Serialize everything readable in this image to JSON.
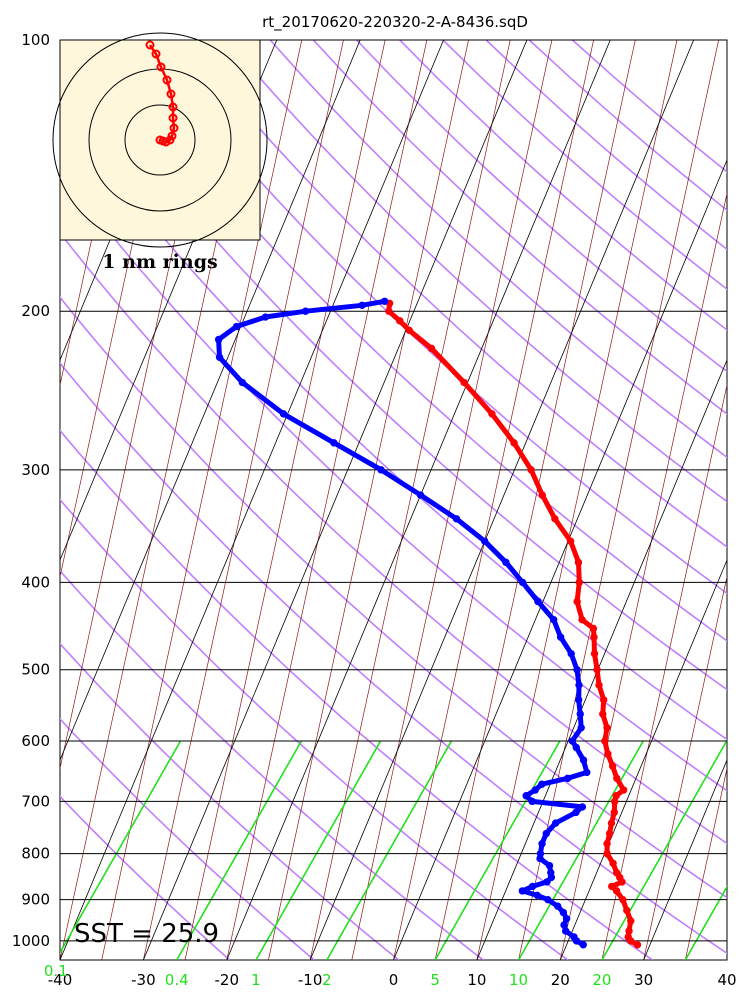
{
  "chart_data": {
    "type": "skew-t",
    "title": "rt_20170620-220320-2-A-8436.sqD",
    "pressure_range": [
      1050,
      100
    ],
    "temperature_range": [
      -40,
      40
    ],
    "y_scale": "log",
    "grid": true,
    "pressure_ticks": [
      100,
      200,
      300,
      400,
      500,
      600,
      700,
      800,
      900,
      1000
    ],
    "temperature_ticks": [
      -40,
      -30,
      -20,
      -10,
      0,
      10,
      20,
      30,
      40
    ],
    "mixing_ratio_labels": [
      {
        "value": "0.1",
        "temp_at_1050": -40.5
      },
      {
        "value": "0.4",
        "temp_at_1050": -26
      },
      {
        "value": "1",
        "temp_at_1050": -16.5
      },
      {
        "value": "2",
        "temp_at_1050": -8
      },
      {
        "value": "5",
        "temp_at_1050": 5
      },
      {
        "value": "10",
        "temp_at_1050": 15
      },
      {
        "value": "20",
        "temp_at_1050": 25
      }
    ],
    "sst_label": "SST = 25.9",
    "hodograph_label": "1 nm rings",
    "series": [
      {
        "name": "temperature",
        "color": "#ff0000",
        "points": [
          [
            1010,
            28.5
          ],
          [
            1000,
            27.5
          ],
          [
            990,
            27.0
          ],
          [
            975,
            26.8
          ],
          [
            950,
            26.5
          ],
          [
            925,
            25.5
          ],
          [
            900,
            24.5
          ],
          [
            880,
            23.3
          ],
          [
            870,
            22.5
          ],
          [
            860,
            23.5
          ],
          [
            850,
            23.0
          ],
          [
            840,
            22.4
          ],
          [
            820,
            21.5
          ],
          [
            800,
            20.3
          ],
          [
            780,
            19.8
          ],
          [
            760,
            19.6
          ],
          [
            740,
            19.3
          ],
          [
            720,
            19.1
          ],
          [
            700,
            18.6
          ],
          [
            690,
            18.5
          ],
          [
            680,
            19.1
          ],
          [
            660,
            17.7
          ],
          [
            640,
            16.6
          ],
          [
            620,
            15.4
          ],
          [
            600,
            14.4
          ],
          [
            580,
            14.0
          ],
          [
            560,
            12.8
          ],
          [
            540,
            12.2
          ],
          [
            520,
            10.9
          ],
          [
            500,
            9.9
          ],
          [
            480,
            8.8
          ],
          [
            460,
            7.9
          ],
          [
            450,
            7.4
          ],
          [
            440,
            5.6
          ],
          [
            420,
            4.1
          ],
          [
            400,
            3.4
          ],
          [
            380,
            2.3
          ],
          [
            360,
            0.3
          ],
          [
            340,
            -2.7
          ],
          [
            320,
            -5.4
          ],
          [
            300,
            -8.0
          ],
          [
            280,
            -11.4
          ],
          [
            260,
            -15.5
          ],
          [
            240,
            -20.4
          ],
          [
            220,
            -26.0
          ],
          [
            210,
            -29.6
          ],
          [
            205,
            -31.2
          ],
          [
            200,
            -33.0
          ],
          [
            196,
            -33.3
          ]
        ]
      },
      {
        "name": "dewpoint",
        "color": "#0000ff",
        "points": [
          [
            1010,
            22.0
          ],
          [
            1000,
            21.0
          ],
          [
            990,
            20.5
          ],
          [
            975,
            19.2
          ],
          [
            960,
            18.7
          ],
          [
            945,
            18.7
          ],
          [
            930,
            18.0
          ],
          [
            915,
            17.0
          ],
          [
            900,
            15.5
          ],
          [
            890,
            14.0
          ],
          [
            880,
            12.0
          ],
          [
            870,
            13.0
          ],
          [
            860,
            14.5
          ],
          [
            850,
            14.8
          ],
          [
            840,
            14.5
          ],
          [
            825,
            14.0
          ],
          [
            810,
            12.5
          ],
          [
            800,
            12.3
          ],
          [
            780,
            12.0
          ],
          [
            760,
            12.0
          ],
          [
            740,
            12.6
          ],
          [
            720,
            14.5
          ],
          [
            710,
            15.0
          ],
          [
            700,
            8.7
          ],
          [
            690,
            7.7
          ],
          [
            680,
            8.5
          ],
          [
            670,
            9.0
          ],
          [
            660,
            11.8
          ],
          [
            650,
            13.8
          ],
          [
            630,
            12.8
          ],
          [
            610,
            11.3
          ],
          [
            600,
            10.5
          ],
          [
            580,
            10.9
          ],
          [
            560,
            10.1
          ],
          [
            540,
            9.2
          ],
          [
            520,
            8.5
          ],
          [
            500,
            7.5
          ],
          [
            480,
            6.0
          ],
          [
            460,
            3.9
          ],
          [
            440,
            2.2
          ],
          [
            420,
            -0.6
          ],
          [
            400,
            -3.4
          ],
          [
            380,
            -6.4
          ],
          [
            360,
            -10.0
          ],
          [
            340,
            -14.5
          ],
          [
            320,
            -20.0
          ],
          [
            300,
            -26.0
          ],
          [
            280,
            -33.0
          ],
          [
            260,
            -40.5
          ],
          [
            240,
            -47.0
          ],
          [
            225,
            -51.0
          ],
          [
            215,
            -52.0
          ],
          [
            208,
            -50.5
          ],
          [
            203,
            -47.5
          ],
          [
            200,
            -43.0
          ],
          [
            197,
            -36.5
          ],
          [
            195,
            -34.0
          ]
        ]
      }
    ],
    "hodograph_points": [
      [
        90,
        5
      ],
      [
        96,
        14
      ],
      [
        101,
        27
      ],
      [
        107,
        40
      ],
      [
        111,
        54
      ],
      [
        113,
        67
      ],
      [
        113,
        78
      ],
      [
        114,
        88
      ],
      [
        112,
        96
      ],
      [
        110,
        100
      ],
      [
        106,
        102
      ],
      [
        103,
        101
      ],
      [
        100,
        100
      ]
    ]
  }
}
